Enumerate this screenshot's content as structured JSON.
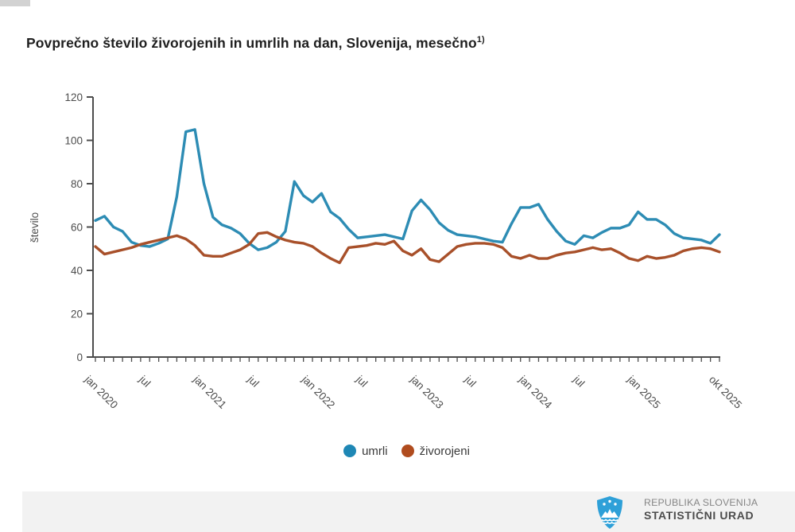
{
  "page": {
    "title": "Povprečno število živorojenih in umrlih na dan, Slovenija, mesečno",
    "title_superscript": "1)"
  },
  "chart_data": {
    "type": "line",
    "title": "Povprečno število živorojenih in umrlih na dan, Slovenija, mesečno 1)",
    "xlabel": "",
    "ylabel": "število",
    "ylim": [
      0,
      120
    ],
    "y_ticks": [
      0,
      20,
      40,
      60,
      80,
      100,
      120
    ],
    "grid": false,
    "legend_position": "bottom",
    "months_count": 70,
    "x_range": "jan 2020 - okt 2025",
    "x_tick_labels": [
      {
        "month_index": 0,
        "label": "jan 2020"
      },
      {
        "month_index": 6,
        "label": "jul"
      },
      {
        "month_index": 12,
        "label": "jan 2021"
      },
      {
        "month_index": 18,
        "label": "jul"
      },
      {
        "month_index": 24,
        "label": "jan 2022"
      },
      {
        "month_index": 30,
        "label": "jul"
      },
      {
        "month_index": 36,
        "label": "jan 2023"
      },
      {
        "month_index": 42,
        "label": "jul"
      },
      {
        "month_index": 48,
        "label": "jan 2024"
      },
      {
        "month_index": 54,
        "label": "jul"
      },
      {
        "month_index": 60,
        "label": "jan 2025"
      },
      {
        "month_index": 69,
        "label": "okt 2025"
      }
    ],
    "series": [
      {
        "name": "umrli",
        "color": "#2d8cb4",
        "values": [
          63,
          65,
          60,
          58,
          53,
          51.5,
          51,
          52.5,
          54.5,
          74,
          104,
          105,
          80,
          64.5,
          61,
          59.5,
          57,
          52.5,
          49.5,
          50.5,
          53,
          58,
          81,
          74.5,
          71.5,
          75.5,
          67,
          64,
          59,
          55,
          55.5,
          56,
          56.5,
          55.5,
          54.5,
          67.5,
          72.5,
          68,
          62,
          58.5,
          56.5,
          56,
          55.5,
          54.5,
          53.5,
          53,
          61.5,
          69,
          69,
          70.5,
          63.5,
          58,
          53.5,
          52,
          56,
          55,
          57.5,
          59.5,
          59.5,
          61,
          67,
          63.5,
          63.5,
          61,
          57,
          55,
          54.5,
          54,
          52.5,
          56.5
        ]
      },
      {
        "name": "živorojeni",
        "color": "#a8502a",
        "values": [
          51,
          47.5,
          48.5,
          49.5,
          50.5,
          52,
          53,
          54,
          55,
          56,
          54.5,
          51.5,
          47,
          46.5,
          46.5,
          48,
          49.5,
          52,
          57,
          57.5,
          55.5,
          54,
          53,
          52.5,
          51,
          48,
          45.5,
          43.5,
          50.5,
          51,
          51.5,
          52.5,
          52,
          53.5,
          49,
          47,
          50,
          45,
          44,
          47.5,
          51,
          52,
          52.5,
          52.5,
          52,
          50.5,
          46.5,
          45.5,
          47,
          45.5,
          45.5,
          47,
          48,
          48.5,
          49.5,
          50.5,
          49.5,
          50,
          48,
          45.5,
          44.5,
          46.5,
          45.5,
          46,
          47,
          49,
          50,
          50.5,
          50,
          48.5
        ]
      }
    ]
  },
  "legend": {
    "items": [
      {
        "label": "umrli",
        "color": "#1e87b5"
      },
      {
        "label": "živorojeni",
        "color": "#b04c1e"
      }
    ]
  },
  "footer": {
    "line1": "REPUBLIKA SLOVENIJA",
    "line2": "STATISTIČNI URAD",
    "logo": "slovenia-coat-of-arms",
    "logo_color": "#2ea0d8",
    "background": "#f2f2f2"
  }
}
